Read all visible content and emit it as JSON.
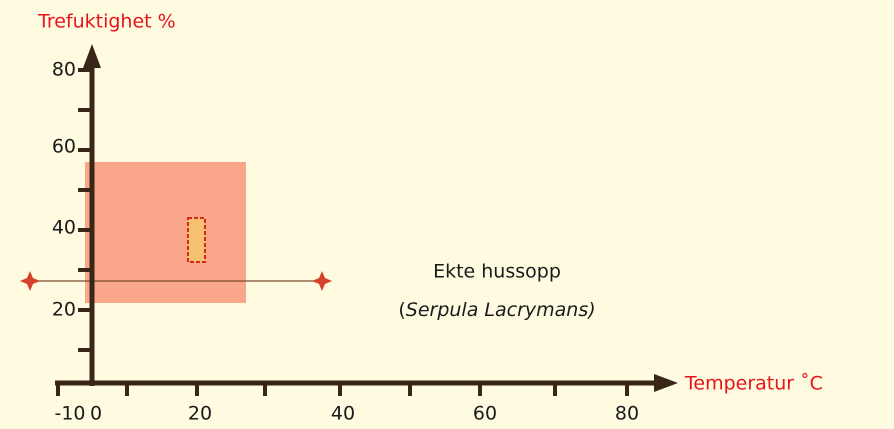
{
  "axis_labels": {
    "y": "Trefuktighet %",
    "x": "Temperatur ˚C"
  },
  "y_tick_labels": [
    "80",
    "60",
    "40",
    "20"
  ],
  "x_tick_labels": [
    "-10",
    "0",
    "20",
    "40",
    "60",
    "80"
  ],
  "annotation": {
    "name": "Ekte hussopp",
    "latin_open": "(",
    "latin": "Serpula Lacrymans)"
  }
}
